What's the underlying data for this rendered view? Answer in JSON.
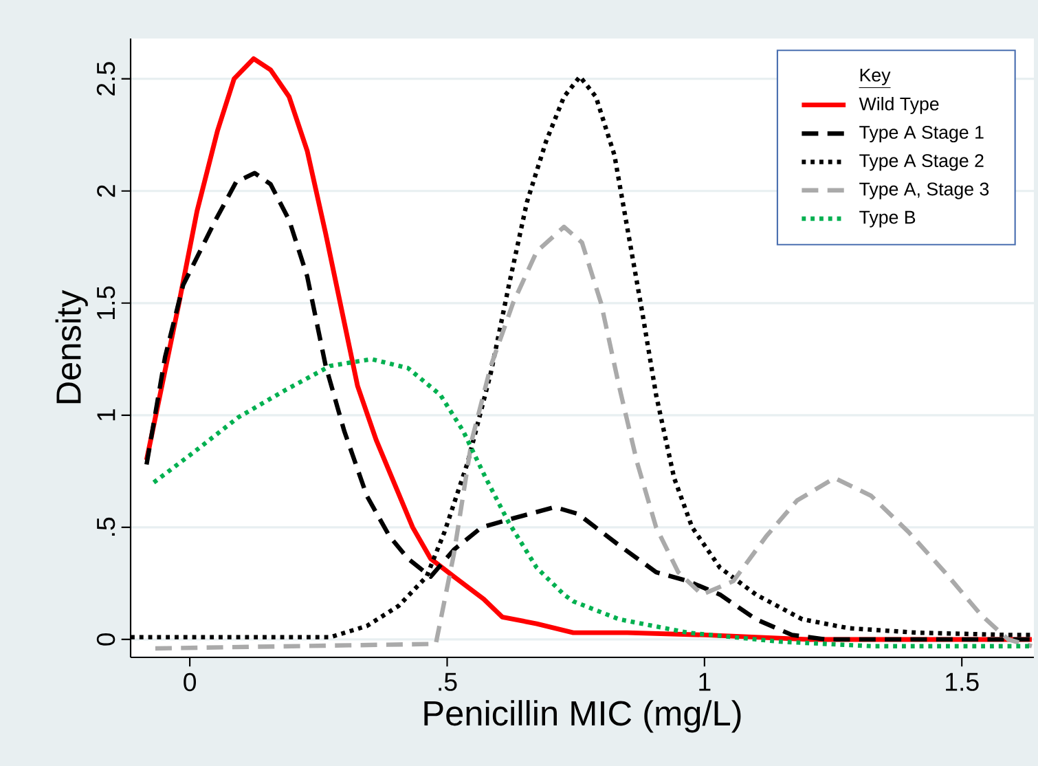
{
  "chart_data": {
    "type": "line",
    "xlabel": "Penicillin MIC (mg/L)",
    "ylabel": "Density",
    "legend_title": "Key",
    "legend": "top right",
    "grid": "y",
    "xlim": [
      -0.115,
      1.64
    ],
    "ylim": [
      -0.08,
      2.68
    ],
    "xticks": [
      0,
      {
        "value": 0.5,
        "label": ".5"
      },
      1,
      1.5
    ],
    "yticks": [
      0,
      {
        "value": 0.5,
        "label": ".5"
      },
      1,
      1.5,
      2,
      2.5
    ],
    "series": [
      {
        "name": "Wild Type",
        "color": "#ff0000",
        "line_style": "solid",
        "x": [
          -0.084,
          -0.021,
          0.014,
          0.054,
          0.086,
          0.124,
          0.157,
          0.193,
          0.228,
          0.264,
          0.326,
          0.362,
          0.433,
          0.468,
          0.513,
          0.571,
          0.607,
          0.674,
          0.745,
          0.85,
          1.0,
          1.2,
          1.4,
          1.636
        ],
        "values": [
          0.8,
          1.5,
          1.91,
          2.27,
          2.5,
          2.59,
          2.54,
          2.42,
          2.18,
          1.81,
          1.13,
          0.89,
          0.5,
          0.36,
          0.28,
          0.18,
          0.1,
          0.07,
          0.03,
          0.03,
          0.02,
          0.0,
          0.0,
          0.0
        ]
      },
      {
        "name": "Type A Stage 1",
        "color": "#000000",
        "line_style": "dashed",
        "x": [
          -0.084,
          -0.048,
          -0.013,
          0.05,
          0.09,
          0.126,
          0.157,
          0.193,
          0.228,
          0.264,
          0.3,
          0.344,
          0.388,
          0.424,
          0.468,
          0.513,
          0.567,
          0.628,
          0.709,
          0.754,
          0.834,
          0.906,
          0.968,
          1.03,
          1.1,
          1.17,
          1.235,
          1.636
        ],
        "values": [
          0.78,
          1.26,
          1.58,
          1.87,
          2.04,
          2.08,
          2.03,
          1.87,
          1.62,
          1.22,
          0.93,
          0.64,
          0.46,
          0.36,
          0.28,
          0.4,
          0.5,
          0.54,
          0.59,
          0.56,
          0.42,
          0.3,
          0.26,
          0.2,
          0.09,
          0.02,
          0.0,
          0.0
        ]
      },
      {
        "name": "Type A Stage 2",
        "color": "#000000",
        "line_style": "dotted",
        "x": [
          -0.115,
          0.273,
          0.344,
          0.406,
          0.46,
          0.495,
          0.54,
          0.585,
          0.62,
          0.655,
          0.692,
          0.727,
          0.758,
          0.789,
          0.825,
          0.852,
          0.879,
          0.906,
          0.941,
          0.976,
          1.03,
          1.1,
          1.19,
          1.28,
          1.414,
          1.59,
          1.636
        ],
        "values": [
          0.01,
          0.01,
          0.06,
          0.15,
          0.28,
          0.48,
          0.79,
          1.19,
          1.58,
          1.95,
          2.22,
          2.42,
          2.51,
          2.42,
          2.16,
          1.81,
          1.46,
          1.09,
          0.72,
          0.5,
          0.32,
          0.2,
          0.09,
          0.05,
          0.03,
          0.02,
          0.02
        ]
      },
      {
        "name": "Type A, Stage 3",
        "color": "#aaaaaa",
        "line_style": "dashed",
        "x": [
          -0.067,
          0.478,
          0.513,
          0.548,
          0.585,
          0.628,
          0.674,
          0.727,
          0.762,
          0.799,
          0.834,
          0.869,
          0.906,
          0.949,
          0.995,
          1.056,
          1.12,
          1.18,
          1.253,
          1.324,
          1.396,
          1.467,
          1.537,
          1.59,
          1.636
        ],
        "values": [
          -0.04,
          -0.02,
          0.38,
          0.89,
          1.22,
          1.5,
          1.73,
          1.84,
          1.77,
          1.5,
          1.13,
          0.79,
          0.5,
          0.3,
          0.2,
          0.26,
          0.46,
          0.62,
          0.72,
          0.64,
          0.48,
          0.3,
          0.11,
          0.0,
          -0.03
        ]
      },
      {
        "name": "Type B",
        "color": "#00b050",
        "line_style": "dotted",
        "x": [
          -0.07,
          0.005,
          0.094,
          0.184,
          0.273,
          0.353,
          0.424,
          0.487,
          0.531,
          0.575,
          0.62,
          0.674,
          0.727,
          0.745,
          0.834,
          0.968,
          1.146,
          1.324,
          1.636
        ],
        "values": [
          0.7,
          0.83,
          0.99,
          1.11,
          1.22,
          1.25,
          1.21,
          1.09,
          0.93,
          0.72,
          0.52,
          0.32,
          0.2,
          0.17,
          0.09,
          0.03,
          -0.01,
          -0.03,
          -0.03
        ]
      }
    ]
  }
}
